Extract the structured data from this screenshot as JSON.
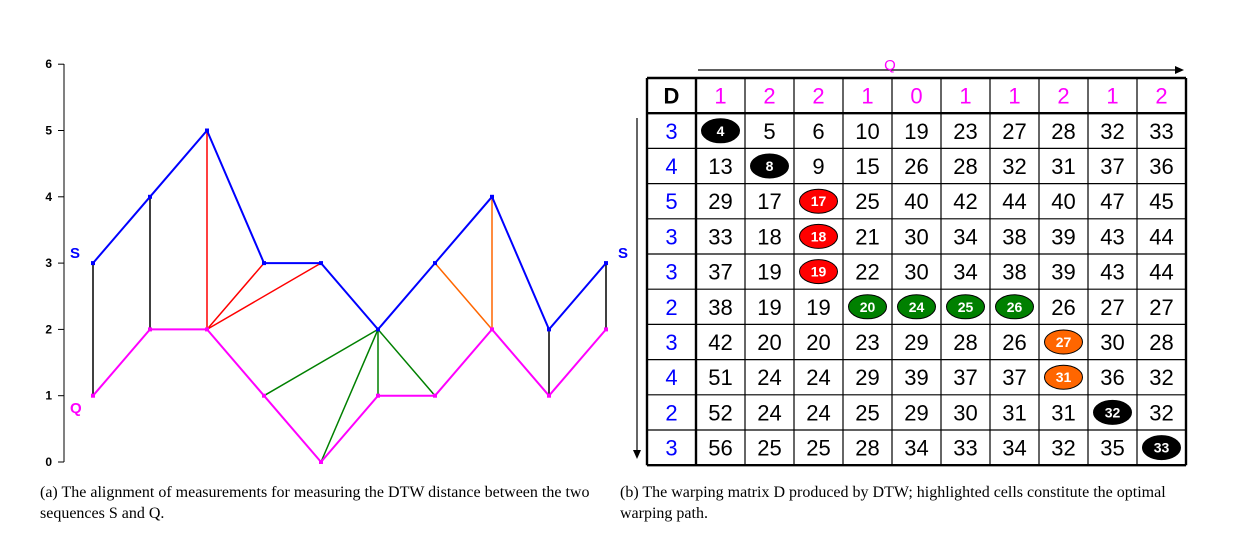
{
  "left_plot": {
    "y_ticks": [
      "0",
      "1",
      "2",
      "3",
      "4",
      "5",
      "6"
    ],
    "label_S_left": "S",
    "label_S_right": "S",
    "label_Q": "Q",
    "S_values": [
      3,
      4,
      5,
      3,
      3,
      2,
      3,
      4,
      2,
      3
    ],
    "Q_values": [
      1,
      2,
      2,
      1,
      0,
      1,
      1,
      2,
      1,
      2
    ],
    "alignment": [
      {
        "s": 0,
        "q": 0,
        "group": "black"
      },
      {
        "s": 1,
        "q": 1,
        "group": "black"
      },
      {
        "s": 2,
        "q": 2,
        "group": "red"
      },
      {
        "s": 3,
        "q": 2,
        "group": "red"
      },
      {
        "s": 4,
        "q": 2,
        "group": "red"
      },
      {
        "s": 5,
        "q": 3,
        "group": "green"
      },
      {
        "s": 5,
        "q": 4,
        "group": "green"
      },
      {
        "s": 5,
        "q": 5,
        "group": "green"
      },
      {
        "s": 5,
        "q": 6,
        "group": "green"
      },
      {
        "s": 6,
        "q": 7,
        "group": "orange"
      },
      {
        "s": 7,
        "q": 7,
        "group": "orange"
      },
      {
        "s": 8,
        "q": 8,
        "group": "black"
      },
      {
        "s": 9,
        "q": 9,
        "group": "black"
      }
    ],
    "colors": {
      "S": "#0000ff",
      "Q": "#ff00ff",
      "black": "#000000",
      "red": "#ff0000",
      "green": "#008000",
      "orange": "#ff6600"
    }
  },
  "matrix": {
    "corner_label": "D",
    "q_axis_label": "Q",
    "q_header": [
      "1",
      "2",
      "2",
      "1",
      "0",
      "1",
      "1",
      "2",
      "1",
      "2"
    ],
    "s_header": [
      "3",
      "4",
      "5",
      "3",
      "3",
      "2",
      "3",
      "4",
      "2",
      "3"
    ],
    "rows": [
      [
        "4",
        "5",
        "6",
        "10",
        "19",
        "23",
        "27",
        "28",
        "32",
        "33"
      ],
      [
        "13",
        "8",
        "9",
        "15",
        "26",
        "28",
        "32",
        "31",
        "37",
        "36"
      ],
      [
        "29",
        "17",
        "17",
        "25",
        "40",
        "42",
        "44",
        "40",
        "47",
        "45"
      ],
      [
        "33",
        "18",
        "18",
        "21",
        "30",
        "34",
        "38",
        "39",
        "43",
        "44"
      ],
      [
        "37",
        "19",
        "19",
        "22",
        "30",
        "34",
        "38",
        "39",
        "43",
        "44"
      ],
      [
        "38",
        "19",
        "19",
        "20",
        "24",
        "25",
        "26",
        "26",
        "27",
        "27"
      ],
      [
        "42",
        "20",
        "20",
        "23",
        "29",
        "28",
        "26",
        "27",
        "30",
        "28"
      ],
      [
        "51",
        "24",
        "24",
        "29",
        "39",
        "37",
        "37",
        "31",
        "36",
        "32"
      ],
      [
        "52",
        "24",
        "24",
        "25",
        "29",
        "30",
        "31",
        "31",
        "32",
        "32"
      ],
      [
        "56",
        "25",
        "25",
        "28",
        "34",
        "33",
        "34",
        "32",
        "35",
        "33"
      ]
    ],
    "path": [
      {
        "r": 0,
        "c": 0,
        "color": "#000000"
      },
      {
        "r": 1,
        "c": 1,
        "color": "#000000"
      },
      {
        "r": 2,
        "c": 2,
        "color": "#ff0000"
      },
      {
        "r": 3,
        "c": 2,
        "color": "#ff0000"
      },
      {
        "r": 4,
        "c": 2,
        "color": "#ff0000"
      },
      {
        "r": 5,
        "c": 3,
        "color": "#008000"
      },
      {
        "r": 5,
        "c": 4,
        "color": "#008000"
      },
      {
        "r": 5,
        "c": 5,
        "color": "#008000"
      },
      {
        "r": 5,
        "c": 6,
        "color": "#008000"
      },
      {
        "r": 6,
        "c": 7,
        "color": "#ff6600"
      },
      {
        "r": 7,
        "c": 7,
        "color": "#ff6600"
      },
      {
        "r": 8,
        "c": 8,
        "color": "#000000"
      },
      {
        "r": 9,
        "c": 9,
        "color": "#000000"
      }
    ],
    "header_colors": {
      "q": "#ff00ff",
      "s": "#0000ff"
    }
  },
  "captions": {
    "a": "(a) The alignment of measurements for measuring the DTW distance between the two sequences S and Q.",
    "b": "(b) The warping matrix D produced by DTW; highlighted cells constitute the optimal warping path."
  }
}
